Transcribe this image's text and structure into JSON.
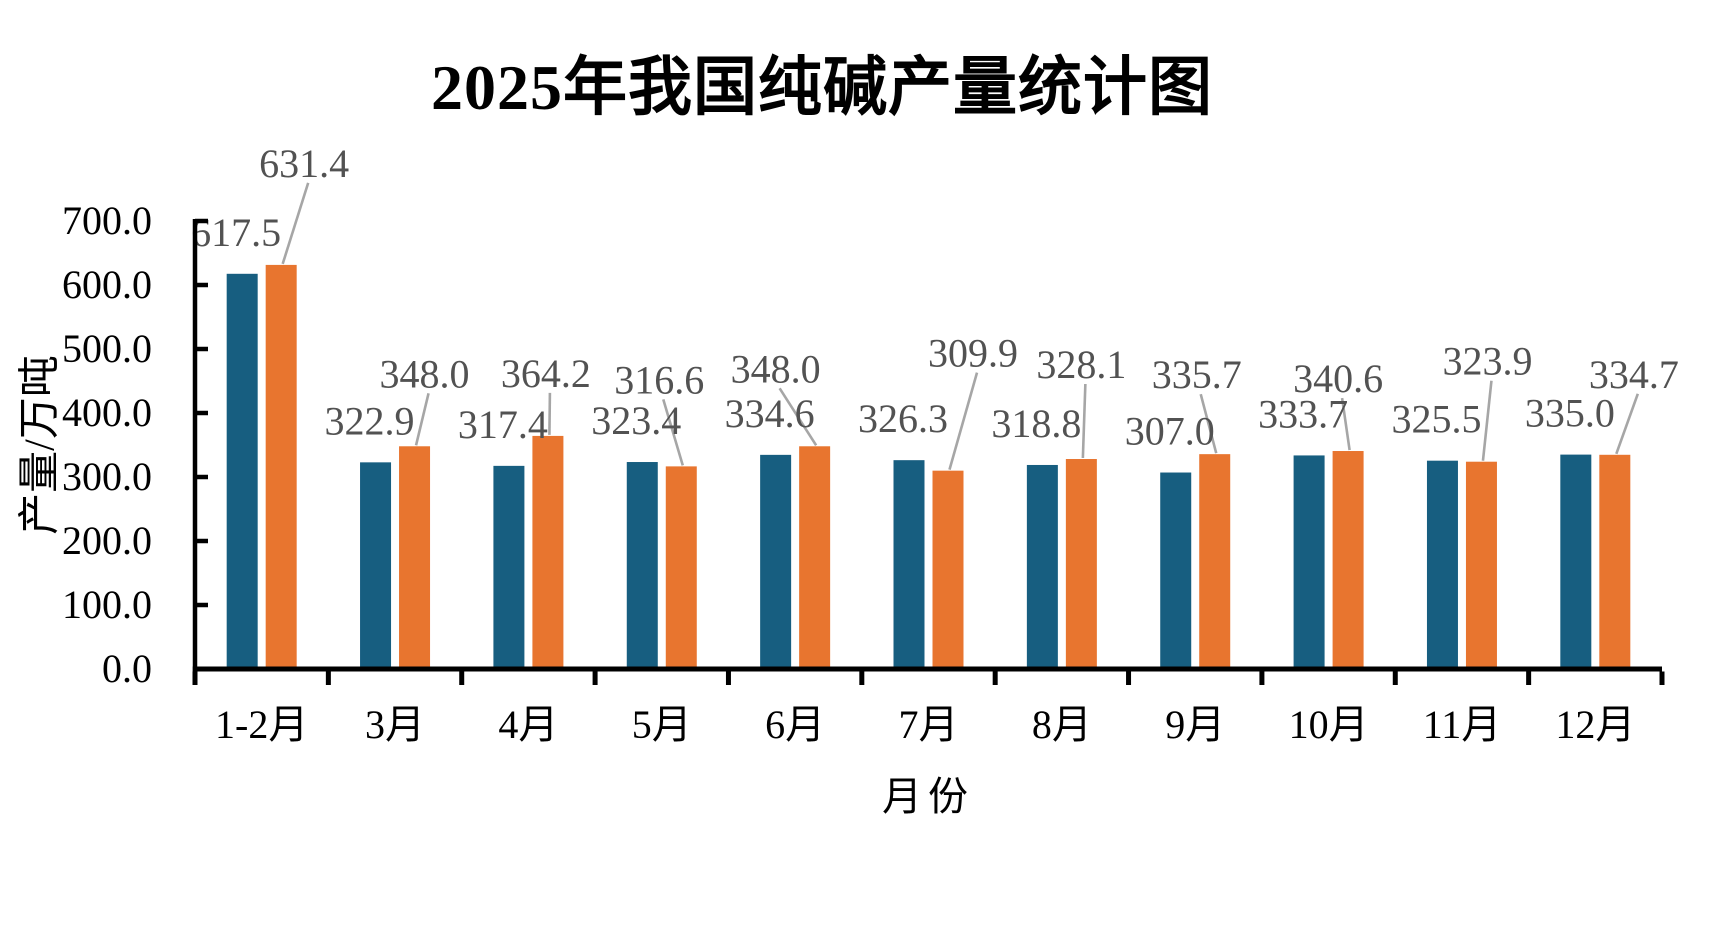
{
  "chart_data": {
    "type": "bar",
    "title": "2025年我国纯碱产量统计图",
    "xlabel": "月份",
    "ylabel": "产量/万吨",
    "categories": [
      "1-2月",
      "3月",
      "4月",
      "5月",
      "6月",
      "7月",
      "8月",
      "9月",
      "10月",
      "11月",
      "12月"
    ],
    "series": [
      {
        "color": "#175E80",
        "values": [
          617.5,
          322.9,
          317.4,
          323.4,
          334.6,
          326.3,
          318.8,
          307.0,
          333.7,
          325.5,
          335.0
        ]
      },
      {
        "color": "#E8752F",
        "values": [
          631.4,
          348.0,
          364.2,
          316.6,
          348.0,
          309.9,
          328.1,
          335.7,
          340.6,
          323.9,
          334.7
        ]
      }
    ],
    "ylim": [
      0,
      700
    ],
    "ytick_step": 100,
    "ytick_labels": [
      "0.0",
      "100.0",
      "200.0",
      "300.0",
      "400.0",
      "500.0",
      "600.0",
      "700.0"
    ],
    "label_format": "one_decimal",
    "grid": false,
    "legend": "none",
    "colors": {
      "axis": "#000000",
      "data_label": "#525252",
      "leader_line": "#A6A6A6",
      "series1": "#175E80",
      "series2": "#E8752F"
    }
  }
}
